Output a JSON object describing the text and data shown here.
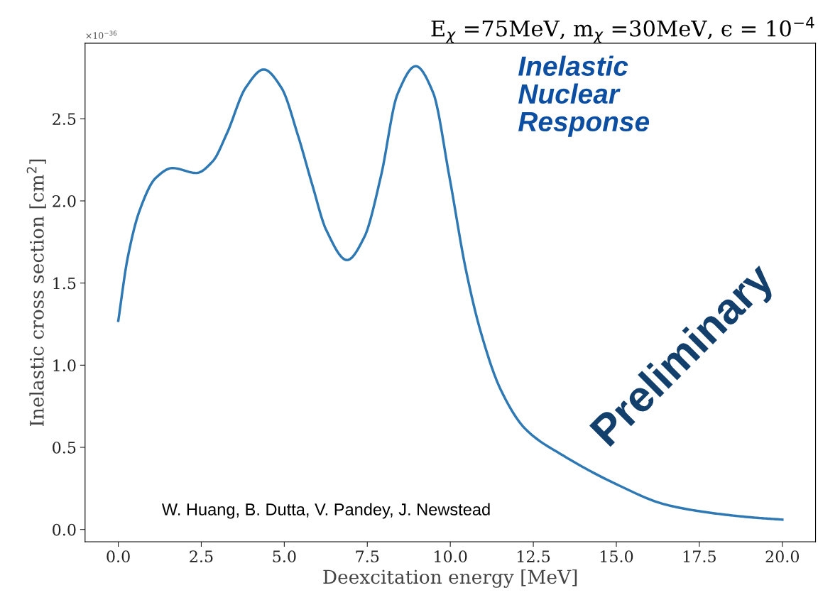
{
  "chart_data": {
    "type": "line",
    "title": "E$_{χ}$ =75MeV, m$_{χ}$ =30MeV, ϵ = 10$^{−4}$",
    "xlabel": "Deexcitation energy [MeV]",
    "ylabel": "Inelastic cross section [cm$^{2}$]",
    "x": [
      0,
      0.28,
      0.64,
      1.13,
      1.63,
      2.35,
      2.84,
      3.27,
      3.84,
      4.38,
      4.91,
      5.41,
      5.84,
      6.27,
      6.89,
      7.41,
      7.91,
      8.41,
      8.96,
      9.48,
      9.97,
      10.47,
      10.92,
      11.52,
      12.27,
      13.4,
      15.06,
      16.42,
      17.54,
      19.05,
      20
    ],
    "series": [
      {
        "color": "#2e78b4",
        "values": [
          1.27,
          1.65,
          1.94,
          2.14,
          2.2,
          2.17,
          2.24,
          2.41,
          2.69,
          2.8,
          2.69,
          2.4,
          2.1,
          1.82,
          1.64,
          1.78,
          2.15,
          2.65,
          2.82,
          2.66,
          2.15,
          1.58,
          1.2,
          0.85,
          0.61,
          0.45,
          0.27,
          0.155,
          0.11,
          0.074,
          0.06
        ]
      }
    ],
    "xlim": [
      -1,
      21
    ],
    "ylim": [
      -0.075,
      2.96
    ],
    "xticks": [
      {
        "value": 0,
        "label": "0.0"
      },
      2.5,
      {
        "value": 5,
        "label": "5.0"
      },
      7.5,
      {
        "value": 10,
        "label": "10.0"
      },
      12.5,
      {
        "value": 15,
        "label": "15.0"
      },
      17.5,
      {
        "value": 20,
        "label": "20.0"
      }
    ],
    "yticks": [
      {
        "value": 0,
        "label": "0.0"
      },
      0.5,
      {
        "value": 1,
        "label": "1.0"
      },
      1.5,
      {
        "value": 2,
        "label": "2.0"
      },
      2.5
    ],
    "annotations": [
      "×10$^{−36}$",
      "Inelastic\nNuclear\nResponse",
      "Preliminary",
      "W. Huang, B. Dutta, V. Pandey, J. Newstead"
    ],
    "grid": false,
    "legend": false,
    "line_style": "solid",
    "marker": "none"
  }
}
